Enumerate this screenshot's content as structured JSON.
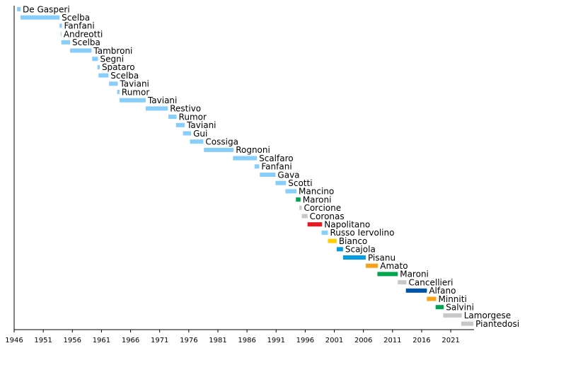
{
  "chart_data": {
    "type": "bar",
    "orientation": "horizontal-timeline",
    "title": "",
    "xlabel": "",
    "ylabel": "",
    "xlim": [
      1946,
      2025
    ],
    "xticks": [
      "1946",
      "1951",
      "1956",
      "1961",
      "1966",
      "1971",
      "1976",
      "1981",
      "1986",
      "1991",
      "1996",
      "2001",
      "2006",
      "2011",
      "2016",
      "2021"
    ],
    "grid": false,
    "legend": "none",
    "colors": {
      "default": "#87cefa",
      "green": "#00a550",
      "grey": "#c8c8c8",
      "red": "#e31b23",
      "yellow": "#ffcc00",
      "blue": "#009ee0",
      "orange": "#f7a21b",
      "darkblue": "#0054a6"
    },
    "bars": [
      {
        "label": "De Gasperi",
        "start": 1946.5,
        "end": 1947.1,
        "color": "#87cefa"
      },
      {
        "label": "Scelba",
        "start": 1947.1,
        "end": 1953.8,
        "color": "#87cefa"
      },
      {
        "label": "Fanfani",
        "start": 1953.8,
        "end": 1954.2,
        "color": "#87cefa"
      },
      {
        "label": "Andreotti",
        "start": 1954.0,
        "end": 1954.1,
        "color": "#87cefa"
      },
      {
        "label": "Scelba",
        "start": 1954.1,
        "end": 1955.6,
        "color": "#87cefa"
      },
      {
        "label": "Tambroni",
        "start": 1955.6,
        "end": 1959.3,
        "color": "#87cefa"
      },
      {
        "label": "Segni",
        "start": 1959.4,
        "end": 1960.4,
        "color": "#87cefa"
      },
      {
        "label": "Spataro",
        "start": 1960.3,
        "end": 1960.7,
        "color": "#87cefa"
      },
      {
        "label": "Scelba",
        "start": 1960.5,
        "end": 1962.2,
        "color": "#87cefa"
      },
      {
        "label": "Taviani",
        "start": 1962.3,
        "end": 1963.8,
        "color": "#87cefa"
      },
      {
        "label": "Rumor",
        "start": 1963.7,
        "end": 1964.1,
        "color": "#87cefa"
      },
      {
        "label": "Taviani",
        "start": 1964.1,
        "end": 1968.6,
        "color": "#87cefa"
      },
      {
        "label": "Restivo",
        "start": 1968.6,
        "end": 1972.4,
        "color": "#87cefa"
      },
      {
        "label": "Rumor",
        "start": 1972.5,
        "end": 1973.9,
        "color": "#87cefa"
      },
      {
        "label": "Taviani",
        "start": 1973.8,
        "end": 1975.3,
        "color": "#87cefa"
      },
      {
        "label": "Gui",
        "start": 1975.0,
        "end": 1976.4,
        "color": "#87cefa"
      },
      {
        "label": "Cossiga",
        "start": 1976.2,
        "end": 1978.5,
        "color": "#87cefa"
      },
      {
        "label": "Rognoni",
        "start": 1978.6,
        "end": 1983.7,
        "color": "#87cefa"
      },
      {
        "label": "Scalfaro",
        "start": 1983.6,
        "end": 1987.7,
        "color": "#87cefa"
      },
      {
        "label": "Fanfani",
        "start": 1987.3,
        "end": 1988.1,
        "color": "#87cefa"
      },
      {
        "label": "Gava",
        "start": 1988.2,
        "end": 1990.9,
        "color": "#87cefa"
      },
      {
        "label": "Scotti",
        "start": 1990.9,
        "end": 1992.7,
        "color": "#87cefa"
      },
      {
        "label": "Mancino",
        "start": 1992.6,
        "end": 1994.5,
        "color": "#87cefa"
      },
      {
        "label": "Maroni",
        "start": 1994.4,
        "end": 1995.2,
        "color": "#00a550"
      },
      {
        "label": "Corcione",
        "start": 1995.0,
        "end": 1995.4,
        "color": "#c8c8c8"
      },
      {
        "label": "Coronas",
        "start": 1995.4,
        "end": 1996.4,
        "color": "#c8c8c8"
      },
      {
        "label": "Napolitano",
        "start": 1996.4,
        "end": 1998.9,
        "color": "#e31b23"
      },
      {
        "label": "Russo Iervolino",
        "start": 1998.8,
        "end": 1999.9,
        "color": "#87cefa"
      },
      {
        "label": "Bianco",
        "start": 1999.9,
        "end": 2001.4,
        "color": "#ffcc00"
      },
      {
        "label": "Scajola",
        "start": 2001.4,
        "end": 2002.5,
        "color": "#009ee0"
      },
      {
        "label": "Pisanu",
        "start": 2002.5,
        "end": 2006.4,
        "color": "#009ee0"
      },
      {
        "label": "Amato",
        "start": 2006.4,
        "end": 2008.5,
        "color": "#f7a21b"
      },
      {
        "label": "Maroni",
        "start": 2008.4,
        "end": 2011.9,
        "color": "#00a550"
      },
      {
        "label": "Cancellieri",
        "start": 2011.9,
        "end": 2013.4,
        "color": "#c8c8c8"
      },
      {
        "label": "Alfano",
        "start": 2013.3,
        "end": 2016.9,
        "color": "#0054a6"
      },
      {
        "label": "Minniti",
        "start": 2016.9,
        "end": 2018.5,
        "color": "#f7a21b"
      },
      {
        "label": "Salvini",
        "start": 2018.4,
        "end": 2019.8,
        "color": "#00a550"
      },
      {
        "label": "Lamorgese",
        "start": 2019.7,
        "end": 2022.9,
        "color": "#c8c8c8"
      },
      {
        "label": "Piantedosi",
        "start": 2022.8,
        "end": 2024.9,
        "color": "#c8c8c8"
      }
    ]
  }
}
